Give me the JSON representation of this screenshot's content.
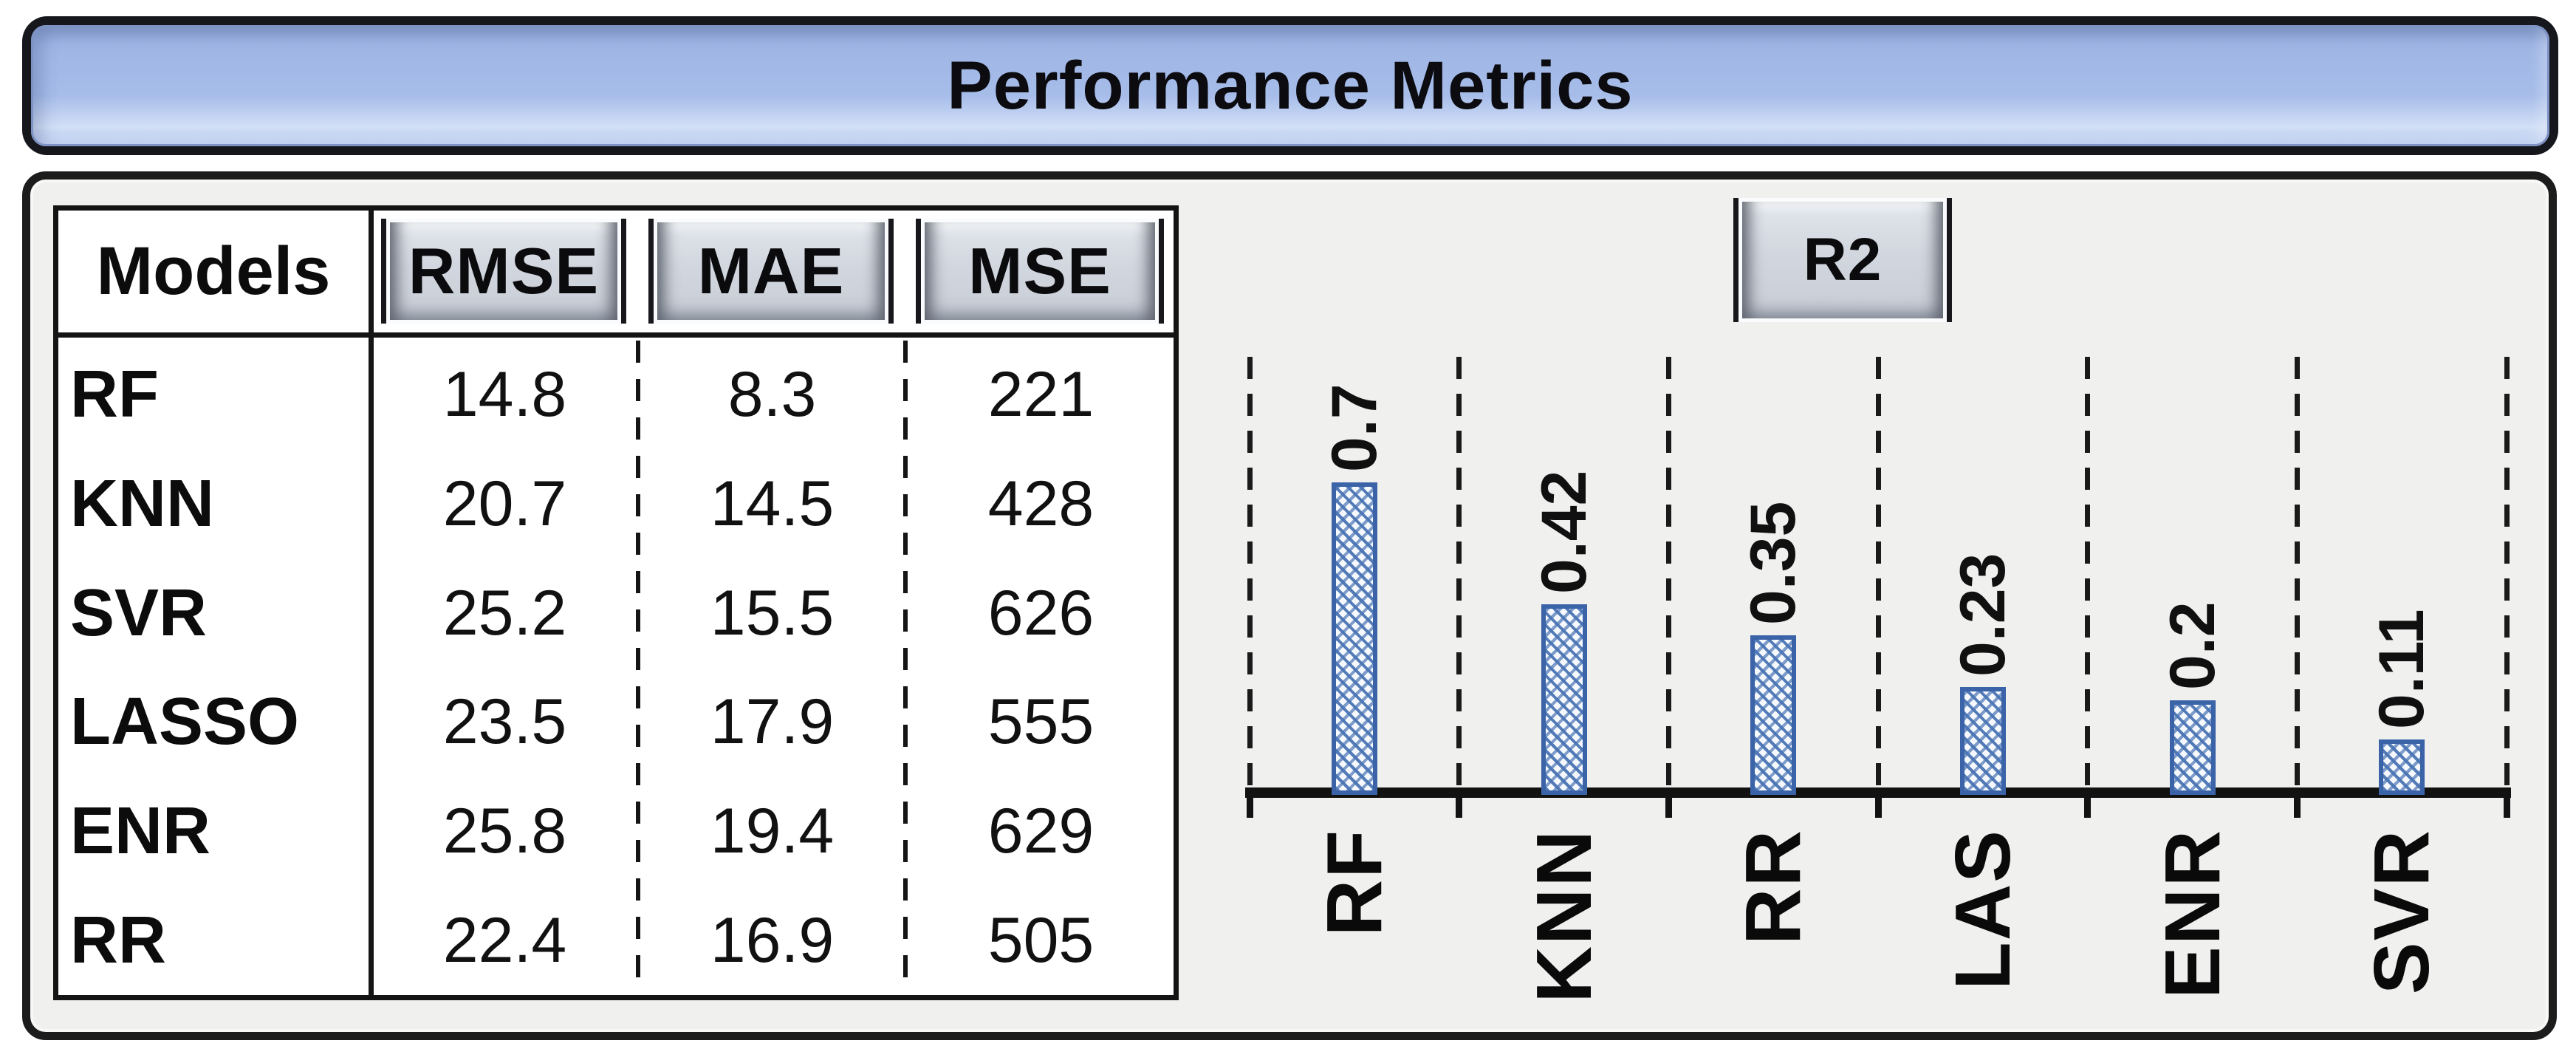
{
  "title_bar": {
    "title": "Performance Metrics"
  },
  "table": {
    "model_header": "Models",
    "metric_headers": [
      "RMSE",
      "MAE",
      "MSE"
    ],
    "rows": [
      {
        "model": "RF",
        "values": [
          "14.8",
          "8.3",
          "221"
        ]
      },
      {
        "model": "KNN",
        "values": [
          "20.7",
          "14.5",
          "428"
        ]
      },
      {
        "model": "SVR",
        "values": [
          "25.2",
          "15.5",
          "626"
        ]
      },
      {
        "model": "LASSO",
        "values": [
          "23.5",
          "17.9",
          "555"
        ]
      },
      {
        "model": "ENR",
        "values": [
          "25.8",
          "19.4",
          "629"
        ]
      },
      {
        "model": "RR",
        "values": [
          "22.4",
          "16.9",
          "505"
        ]
      }
    ]
  },
  "chart_data": {
    "type": "bar",
    "title": "R2",
    "categories": [
      "RF",
      "KNN",
      "RR",
      "LAS",
      "ENR",
      "SVR"
    ],
    "values": [
      0.7,
      0.42,
      0.35,
      0.23,
      0.2,
      0.11
    ],
    "value_labels": [
      "0.7",
      "0.42",
      "0.35",
      "0.23",
      "0.2",
      "0.11"
    ],
    "xlabel": "",
    "ylabel": "",
    "ylim": [
      0,
      1
    ],
    "grid": "vertical-dashed-separators",
    "legend_position": "none",
    "bar_style": "blue-diagonal-crosshatch",
    "label_rotation_deg": 90
  },
  "colors": {
    "title_bar_fill": "#a6bce9",
    "panel_fill": "#f0f0ee",
    "bar_border_blue": "#3a63a8",
    "hatch_blue": "#4a74b4",
    "line_black": "#141414",
    "button_face_gray": "#ced3da"
  }
}
